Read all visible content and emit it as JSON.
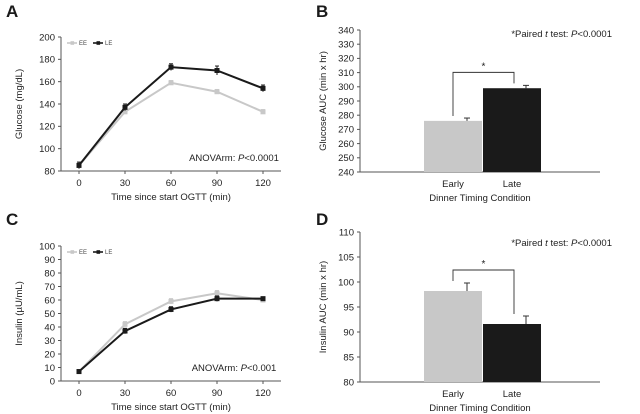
{
  "colors": {
    "early": "#c8c8c8",
    "late": "#1a1a1a",
    "axis": "#555555"
  },
  "chart_data": [
    {
      "panel": "A",
      "type": "line",
      "x": [
        0,
        30,
        60,
        90,
        120
      ],
      "series": [
        {
          "name": "EE",
          "values": [
            85,
            133,
            159,
            151,
            133
          ],
          "err": [
            2,
            2,
            2,
            2,
            2
          ]
        },
        {
          "name": "LE",
          "values": [
            85,
            137,
            173,
            170,
            154
          ],
          "err": [
            3,
            3,
            3,
            4,
            3
          ]
        }
      ],
      "xlabel": "Time since start OGTT (min)",
      "ylabel": "Glucose (mg/dL)",
      "ylim": [
        80,
        200
      ],
      "yticks": [
        80,
        100,
        120,
        140,
        160,
        180,
        200
      ],
      "annotation_prefix": "ANOVArm: ",
      "annotation_p": "P",
      "annotation_value": "<0.0001",
      "legend": "top-left",
      "grid": false
    },
    {
      "panel": "B",
      "type": "bar",
      "categories": [
        "Early",
        "Late"
      ],
      "values": [
        276,
        299
      ],
      "err": [
        2,
        2
      ],
      "xlabel": "Dinner Timing Condition",
      "ylabel": "Glucose AUC (min x hr)",
      "ylim": [
        240,
        340
      ],
      "yticks": [
        240,
        250,
        260,
        270,
        280,
        290,
        300,
        310,
        320,
        330,
        340
      ],
      "annotation_prefix": "*Paired ",
      "annotation_t": "t",
      "annotation_mid": " test: ",
      "annotation_p": "P",
      "annotation_value": "<0.0001",
      "significance": "*",
      "grid": false
    },
    {
      "panel": "C",
      "type": "line",
      "x": [
        0,
        30,
        60,
        90,
        120
      ],
      "series": [
        {
          "name": "EE",
          "values": [
            7,
            42,
            59,
            65,
            60
          ],
          "err": [
            1,
            2,
            2,
            2,
            1
          ]
        },
        {
          "name": "LE",
          "values": [
            7,
            37,
            53,
            61,
            61
          ],
          "err": [
            1,
            2,
            2,
            2,
            1
          ]
        }
      ],
      "xlabel": "Time since start OGTT (min)",
      "ylabel": "Insulin (µU/mL)",
      "ylim": [
        0,
        100
      ],
      "yticks": [
        0,
        10,
        20,
        30,
        40,
        50,
        60,
        70,
        80,
        90,
        100
      ],
      "annotation_prefix": "ANOVArm: ",
      "annotation_p": "P",
      "annotation_value": "<0.001",
      "legend": "top-left",
      "grid": false
    },
    {
      "panel": "D",
      "type": "bar",
      "categories": [
        "Early",
        "Late"
      ],
      "values": [
        98.2,
        91.6
      ],
      "err": [
        1.6,
        1.6
      ],
      "xlabel": "Dinner Timing Condition",
      "ylabel": "Insulin AUC (min x hr)",
      "ylim": [
        80,
        110
      ],
      "yticks": [
        80,
        85,
        90,
        95,
        100,
        105,
        110
      ],
      "annotation_prefix": "*Paired ",
      "annotation_t": "t",
      "annotation_mid": " test: ",
      "annotation_p": "P",
      "annotation_value": "<0.0001",
      "significance": "*",
      "grid": false
    }
  ]
}
